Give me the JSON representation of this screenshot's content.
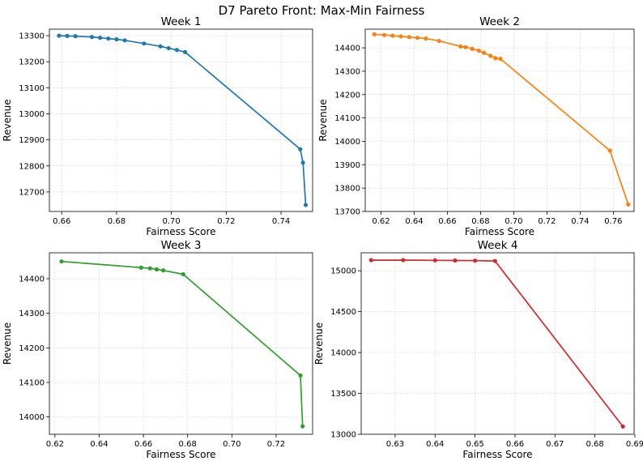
{
  "figure_title": "D7 Pareto Front: Max-Min Fairness",
  "chart_data": [
    {
      "type": "line",
      "title": "Week 1",
      "xlabel": "Fairness Score",
      "ylabel": "Revenue",
      "color": "#1f77b4",
      "xlim": [
        0.6555,
        0.7515
      ],
      "ylim": [
        12625,
        13325
      ],
      "xticks": [
        0.66,
        0.68,
        0.7,
        0.72,
        0.74
      ],
      "xtick_labels": [
        "0.66",
        "0.68",
        "0.70",
        "0.72",
        "0.74"
      ],
      "yticks": [
        12700,
        12800,
        12900,
        13000,
        13100,
        13200,
        13300
      ],
      "ytick_labels": [
        "12700",
        "12800",
        "12900",
        "13000",
        "13100",
        "13200",
        "13300"
      ],
      "grid": true,
      "x": [
        0.659,
        0.662,
        0.665,
        0.671,
        0.674,
        0.677,
        0.68,
        0.683,
        0.69,
        0.696,
        0.699,
        0.702,
        0.705,
        0.747,
        0.748,
        0.749
      ],
      "y": [
        13300,
        13299,
        13298,
        13295,
        13292,
        13289,
        13286,
        13282,
        13270,
        13259,
        13252,
        13245,
        13237,
        12864,
        12812,
        12650
      ]
    },
    {
      "type": "line",
      "title": "Week 2",
      "xlabel": "Fairness Score",
      "ylabel": "Revenue",
      "color": "#ff7f0e",
      "xlim": [
        0.6105,
        0.7725
      ],
      "ylim": [
        13700,
        14480
      ],
      "xticks": [
        0.62,
        0.64,
        0.66,
        0.68,
        0.7,
        0.72,
        0.74,
        0.76
      ],
      "xtick_labels": [
        "0.62",
        "0.64",
        "0.66",
        "0.68",
        "0.70",
        "0.72",
        "0.74",
        "0.76"
      ],
      "yticks": [
        13700,
        13800,
        13900,
        14000,
        14100,
        14200,
        14300,
        14400
      ],
      "ytick_labels": [
        "13700",
        "13800",
        "13900",
        "14000",
        "14100",
        "14200",
        "14300",
        "14400"
      ],
      "grid": true,
      "x": [
        0.616,
        0.622,
        0.627,
        0.632,
        0.637,
        0.642,
        0.647,
        0.655,
        0.668,
        0.671,
        0.675,
        0.679,
        0.682,
        0.686,
        0.689,
        0.692,
        0.758,
        0.769
      ],
      "y": [
        14458,
        14455,
        14452,
        14449,
        14446,
        14443,
        14440,
        14430,
        14406,
        14403,
        14396,
        14388,
        14379,
        14366,
        14356,
        14353,
        13960,
        13730
      ]
    },
    {
      "type": "line",
      "title": "Week 3",
      "xlabel": "Fairness Score",
      "ylabel": "Revenue",
      "color": "#2ca02c",
      "xlim": [
        0.6175,
        0.7365
      ],
      "ylim": [
        13950,
        14475
      ],
      "xticks": [
        0.62,
        0.64,
        0.66,
        0.68,
        0.7,
        0.72
      ],
      "xtick_labels": [
        "0.62",
        "0.64",
        "0.66",
        "0.68",
        "0.70",
        "0.72"
      ],
      "yticks": [
        14000,
        14100,
        14200,
        14300,
        14400
      ],
      "ytick_labels": [
        "14000",
        "14100",
        "14200",
        "14300",
        "14400"
      ],
      "grid": true,
      "x": [
        0.623,
        0.659,
        0.663,
        0.666,
        0.669,
        0.678,
        0.731,
        0.732
      ],
      "y": [
        14450,
        14432,
        14430,
        14427,
        14424,
        14413,
        14120,
        13973
      ]
    },
    {
      "type": "line",
      "title": "Week 4",
      "xlabel": "Fairness Score",
      "ylabel": "Revenue",
      "color": "#d62728",
      "xlim": [
        0.6215,
        0.6898
      ],
      "ylim": [
        13000,
        15220
      ],
      "xticks": [
        0.63,
        0.64,
        0.65,
        0.66,
        0.67,
        0.68,
        0.69
      ],
      "xtick_labels": [
        "0.63",
        "0.64",
        "0.65",
        "0.66",
        "0.67",
        "0.68",
        "0.69"
      ],
      "yticks": [
        13000,
        13500,
        14000,
        14500,
        15000
      ],
      "ytick_labels": [
        "13000",
        "13500",
        "14000",
        "14500",
        "15000"
      ],
      "grid": true,
      "x": [
        0.624,
        0.632,
        0.64,
        0.645,
        0.65,
        0.655,
        0.687
      ],
      "y": [
        15130,
        15130,
        15128,
        15126,
        15124,
        15120,
        13095
      ]
    }
  ]
}
